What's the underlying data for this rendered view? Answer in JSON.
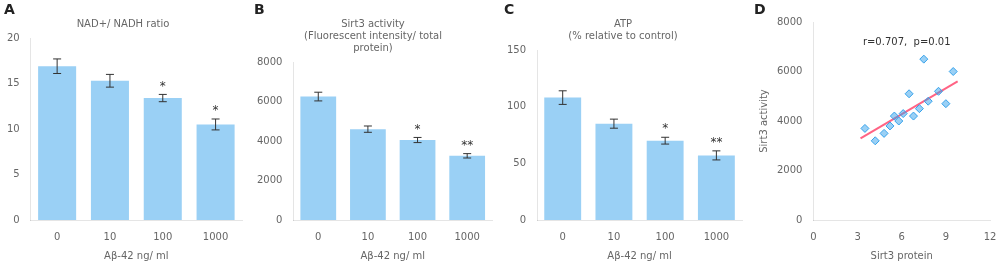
{
  "chart_data": [
    {
      "type": "bar",
      "label": "A",
      "title": "NAD+/ NADH ratio",
      "categories": [
        "0",
        "10",
        "100",
        "1000"
      ],
      "values": [
        16.9,
        15.3,
        13.4,
        10.5
      ],
      "errors": [
        0.8,
        0.7,
        0.4,
        0.6
      ],
      "annotations": [
        {
          "category": "100",
          "text": "*"
        },
        {
          "category": "1000",
          "text": "*"
        }
      ],
      "xlabel": "Aβ-42 ng/ ml",
      "ylim": [
        0,
        20
      ],
      "yticks": [
        0,
        5,
        10,
        15,
        20
      ],
      "grid": false
    },
    {
      "type": "bar",
      "label": "B",
      "title": "Sirt3 activity\n(Fluorescent intensity/ total\nprotein)",
      "categories": [
        "0",
        "10",
        "100",
        "1000"
      ],
      "values": [
        6250,
        4600,
        4050,
        3250
      ],
      "errors": [
        220,
        160,
        130,
        110
      ],
      "annotations": [
        {
          "category": "100",
          "text": "*"
        },
        {
          "category": "1000",
          "text": "**"
        }
      ],
      "xlabel": "Aβ-42 ng/ ml",
      "ylim": [
        0,
        8000
      ],
      "yticks": [
        0,
        2000,
        4000,
        6000,
        8000
      ],
      "grid": false
    },
    {
      "type": "bar",
      "label": "C",
      "title": "ATP\n(% relative to control)",
      "categories": [
        "0",
        "10",
        "100",
        "1000"
      ],
      "values": [
        108,
        85,
        70,
        57
      ],
      "errors": [
        6,
        4,
        3,
        4
      ],
      "annotations": [
        {
          "category": "100",
          "text": "*"
        },
        {
          "category": "1000",
          "text": "**"
        }
      ],
      "xlabel": "Aβ-42 ng/ ml",
      "ylim": [
        0,
        150
      ],
      "yticks": [
        0,
        50,
        100,
        150
      ],
      "grid": false
    },
    {
      "type": "scatter",
      "label": "D",
      "annotation": "r=0.707,  p=0.01",
      "xlabel": "Sirt3 protein",
      "ylabel": "Sirt3 activity",
      "xlim": [
        0,
        12
      ],
      "xticks": [
        0,
        3,
        6,
        9,
        12
      ],
      "ylim": [
        0,
        8000
      ],
      "yticks": [
        0,
        2000,
        4000,
        6000,
        8000
      ],
      "grid": false,
      "series": [
        {
          "type": "scatter",
          "marker": "diamond",
          "x": [
            3.5,
            4.2,
            4.8,
            5.2,
            5.5,
            5.8,
            6.1,
            6.5,
            6.8,
            7.2,
            7.5,
            7.8,
            8.5,
            9.0,
            9.5
          ],
          "values": [
            3700,
            3200,
            3500,
            3800,
            4200,
            4000,
            4300,
            5100,
            4200,
            4500,
            6500,
            4800,
            5200,
            4700,
            6000
          ]
        },
        {
          "type": "line",
          "x": [
            3.2,
            9.8
          ],
          "values": [
            3300,
            5600
          ]
        }
      ]
    }
  ]
}
